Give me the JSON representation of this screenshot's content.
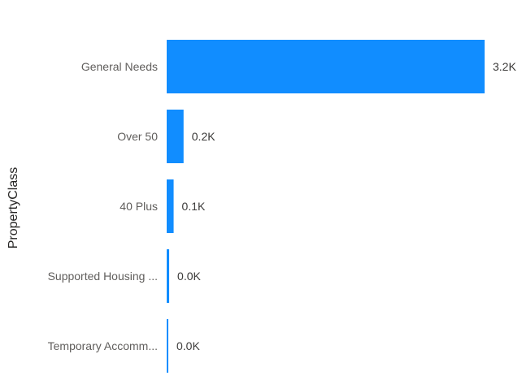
{
  "chart_data": {
    "type": "bar",
    "orientation": "horizontal",
    "ylabel": "PropertyClass",
    "categories": [
      "General Needs",
      "Over 50",
      "40 Plus",
      "Supported Housing ...",
      "Temporary Accomm..."
    ],
    "values": [
      3200,
      170,
      70,
      25,
      10
    ],
    "data_labels": [
      "3.2K",
      "0.2K",
      "0.1K",
      "0.0K",
      "0.0K"
    ],
    "xlim": [
      0,
      3200
    ],
    "bar_color": "#118dff",
    "grid": false,
    "legend": "none"
  }
}
